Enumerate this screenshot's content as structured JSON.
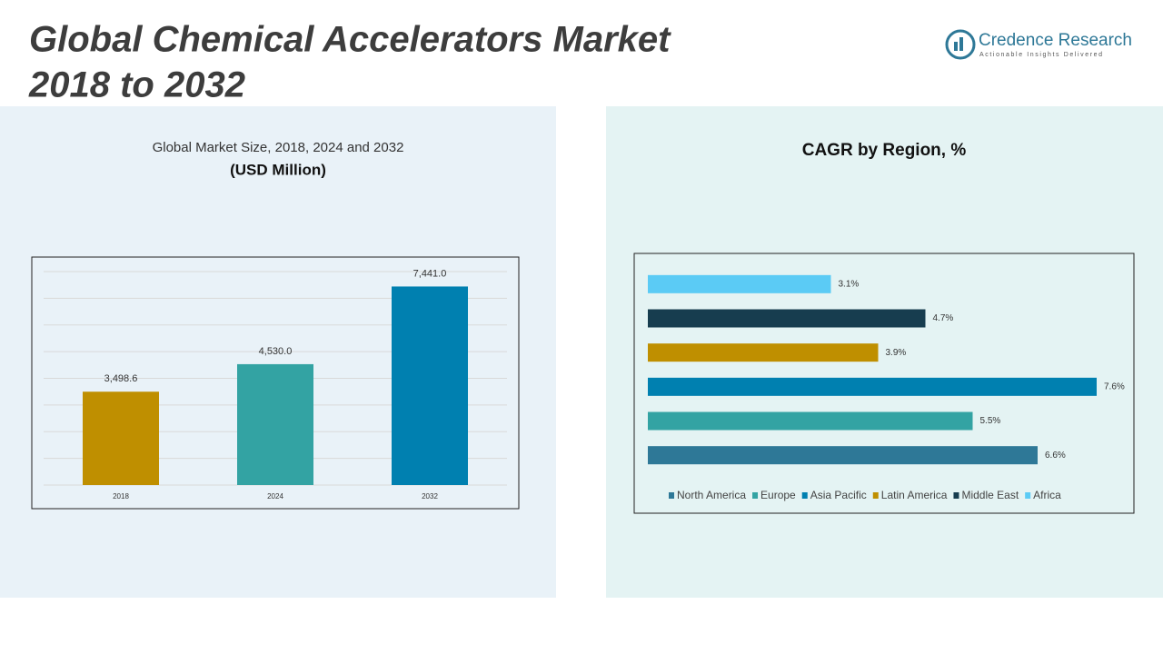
{
  "header": {
    "title_line1": "Global Chemical Accelerators Market",
    "title_line2": "2018 to 2032",
    "brand": "Credence Research",
    "tagline": "Actionable Insights Delivered"
  },
  "chart_data": [
    {
      "type": "bar",
      "title": "Global Market Size, 2018, 2024 and 2032",
      "subtitle": "(USD Million)",
      "categories": [
        "2018",
        "2024",
        "2032"
      ],
      "values": [
        3498.6,
        4530.0,
        7441.0
      ],
      "value_labels": [
        "3,498.6",
        "4,530.0",
        "7,441.0"
      ],
      "colors": [
        "#bf8f00",
        "#33a3a3",
        "#0080b0"
      ],
      "ylim": [
        0,
        8000
      ],
      "yticks": [
        0,
        1000,
        2000,
        3000,
        4000,
        5000,
        6000,
        7000,
        8000
      ],
      "grid": true
    },
    {
      "type": "hbar",
      "title": "CAGR by Region, %",
      "categories": [
        "North America",
        "Europe",
        "Asia Pacific",
        "Latin America",
        "Middle East",
        "Africa"
      ],
      "values": [
        6.6,
        5.5,
        7.6,
        3.9,
        4.7,
        3.1
      ],
      "value_labels": [
        "6.6%",
        "5.5%",
        "7.6%",
        "3.9%",
        "4.7%",
        "3.1%"
      ],
      "colors": [
        "#2e7897",
        "#33a3a3",
        "#0080b0",
        "#bf8f00",
        "#173d4f",
        "#5bcbf5"
      ],
      "xlim": [
        0,
        8.2
      ],
      "legend": "bottom"
    }
  ]
}
